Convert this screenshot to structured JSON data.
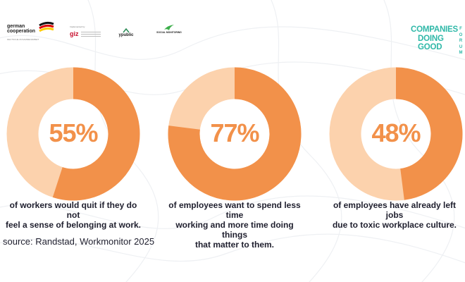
{
  "logos": {
    "german_cooperation": {
      "name_line1": "german",
      "name_line2": "cooperation",
      "tagline": "DEUTSCHE ZUSAMMENARBEIT"
    },
    "giz": {
      "label": "Implemented by",
      "name": "giz"
    },
    "public": {
      "name": "ypublic"
    },
    "social_monitoring": {
      "name": "SOCIAL MONITORING"
    },
    "companies_doing_good": {
      "line1": "COMPANIES",
      "line2": "DOING",
      "line3": "GOOD",
      "side": "FORUM"
    }
  },
  "colors": {
    "accent": "#f2914a",
    "accent_light": "#fcd2ad",
    "text": "#1f1f2e",
    "teal": "#2fb8a8"
  },
  "chart_data": [
    {
      "type": "pie",
      "values": [
        55,
        45
      ],
      "label": "55%",
      "caption": [
        "of workers would quit if they do not",
        "feel a sense of belonging at work."
      ]
    },
    {
      "type": "pie",
      "values": [
        77,
        23
      ],
      "label": "77%",
      "caption": [
        "of employees want to spend less time",
        "working and more time doing things",
        "that matter to them."
      ]
    },
    {
      "type": "pie",
      "values": [
        48,
        52
      ],
      "label": "48%",
      "caption": [
        "of employees have already left jobs",
        "due to toxic workplace culture."
      ]
    }
  ],
  "source": "source: Randstad, Workmonitor 2025"
}
